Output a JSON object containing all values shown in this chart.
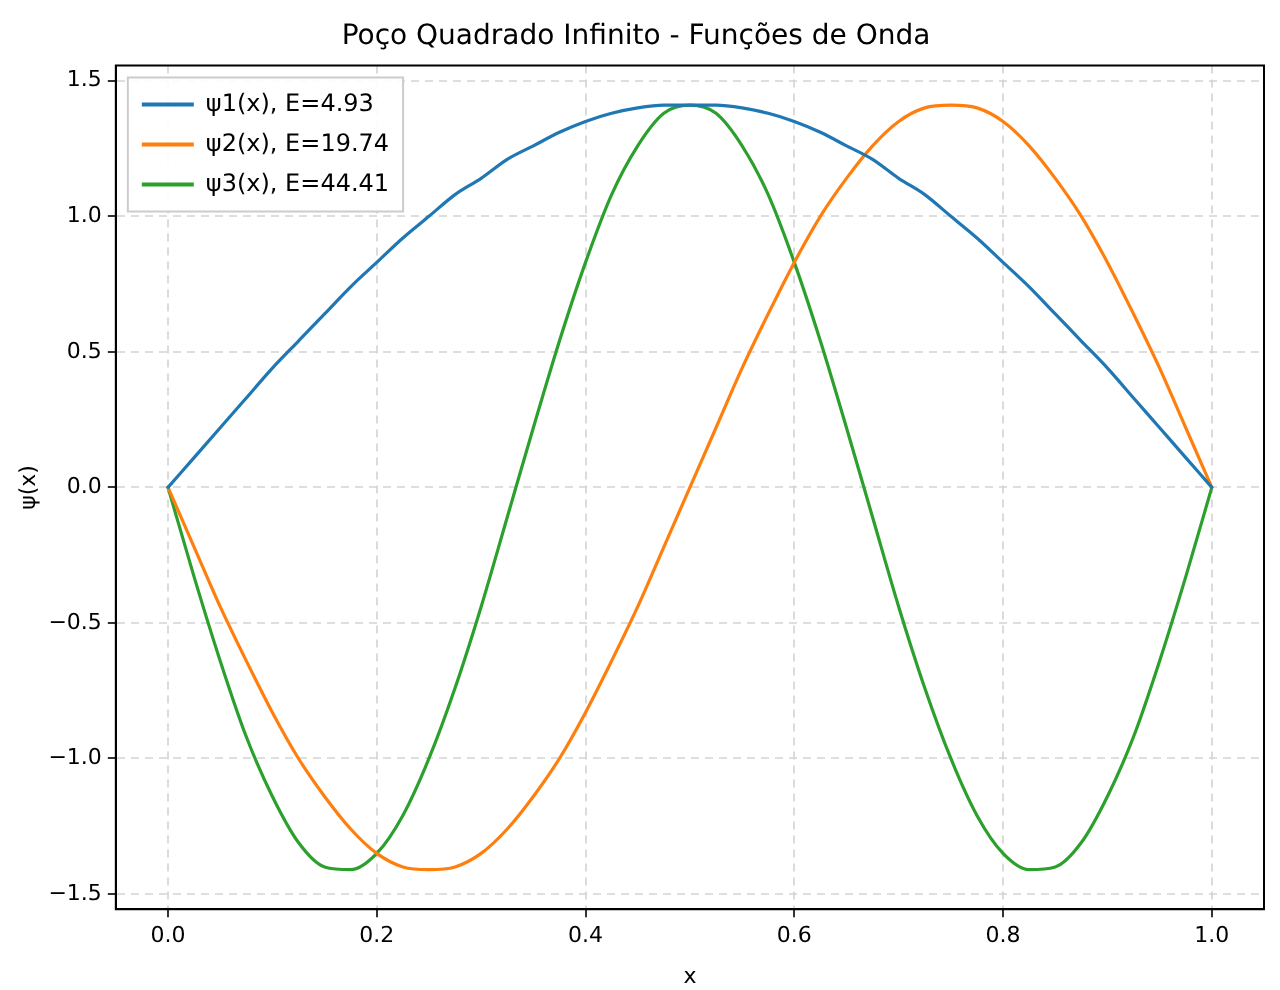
{
  "chart_data": {
    "type": "line",
    "title": "Poço Quadrado Infinito - Funções de Onda",
    "xlabel": "x",
    "ylabel": "ψ(x)",
    "x": [
      0,
      0.025,
      0.05,
      0.075,
      0.1,
      0.125,
      0.15,
      0.175,
      0.2,
      0.225,
      0.25,
      0.275,
      0.3,
      0.325,
      0.35,
      0.375,
      0.4,
      0.425,
      0.45,
      0.475,
      0.5,
      0.525,
      0.55,
      0.575,
      0.6,
      0.625,
      0.65,
      0.675,
      0.7,
      0.725,
      0.75,
      0.775,
      0.8,
      0.825,
      0.85,
      0.875,
      0.9,
      0.925,
      0.95,
      0.975,
      1
    ],
    "series": [
      {
        "name": "ψ1(x), E=4.93",
        "color": "#1f77b4",
        "values": [
          0,
          0.11,
          0.22,
          0.33,
          0.44,
          0.54,
          0.64,
          0.74,
          0.83,
          0.92,
          1.0,
          1.08,
          1.14,
          1.21,
          1.26,
          1.31,
          1.35,
          1.38,
          1.4,
          1.41,
          1.41,
          1.41,
          1.4,
          1.38,
          1.35,
          1.31,
          1.26,
          1.21,
          1.14,
          1.08,
          1.0,
          0.92,
          0.83,
          0.74,
          0.64,
          0.54,
          0.44,
          0.33,
          0.22,
          0.11,
          0
        ]
      },
      {
        "name": "ψ2(x), E=19.74",
        "color": "#ff7f0e",
        "values": [
          0,
          -0.22,
          -0.44,
          -0.64,
          -0.83,
          -1.0,
          -1.14,
          -1.26,
          -1.35,
          -1.4,
          -1.41,
          -1.4,
          -1.35,
          -1.26,
          -1.14,
          -1.0,
          -0.83,
          -0.64,
          -0.44,
          -0.22,
          0,
          0.22,
          0.44,
          0.64,
          0.83,
          1.0,
          1.14,
          1.26,
          1.35,
          1.4,
          1.41,
          1.4,
          1.35,
          1.26,
          1.14,
          1.0,
          0.83,
          0.64,
          0.44,
          0.22,
          0
        ]
      },
      {
        "name": "ψ3(x), E=44.41",
        "color": "#2ca02c",
        "values": [
          0,
          -0.33,
          -0.64,
          -0.92,
          -1.14,
          -1.31,
          -1.4,
          -1.41,
          -1.35,
          -1.21,
          -1.0,
          -0.74,
          -0.44,
          -0.11,
          0.22,
          0.54,
          0.83,
          1.08,
          1.26,
          1.38,
          1.41,
          1.38,
          1.26,
          1.08,
          0.83,
          0.54,
          0.22,
          -0.11,
          -0.44,
          -0.74,
          -1.0,
          -1.21,
          -1.35,
          -1.41,
          -1.4,
          -1.31,
          -1.14,
          -0.92,
          -0.64,
          -0.33,
          0
        ]
      }
    ],
    "xlim": [
      -0.05,
      1.05
    ],
    "xticks": [
      {
        "value": 0,
        "label": "0.0"
      },
      {
        "value": 0.2,
        "label": "0.2"
      },
      {
        "value": 0.4,
        "label": "0.4"
      },
      {
        "value": 0.6,
        "label": "0.6"
      },
      {
        "value": 0.8,
        "label": "0.8"
      },
      {
        "value": 1,
        "label": "1.0"
      }
    ],
    "ylim": [
      -1.556,
      1.556
    ],
    "yticks": [
      {
        "value": -1.5,
        "label": "−1.5"
      },
      {
        "value": -1,
        "label": "−1.0"
      },
      {
        "value": -0.5,
        "label": "−0.5"
      },
      {
        "value": 0,
        "label": "0.0"
      },
      {
        "value": 0.5,
        "label": "0.5"
      },
      {
        "value": 1,
        "label": "1.0"
      },
      {
        "value": 1.5,
        "label": "1.5"
      }
    ],
    "grid": true,
    "legend": "top left",
    "marker": "none",
    "line_style": "solid"
  }
}
